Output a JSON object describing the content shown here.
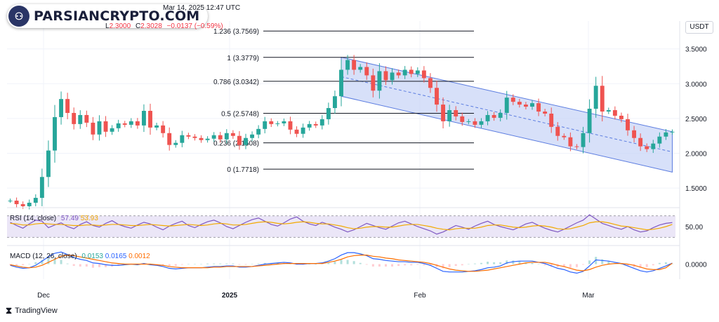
{
  "header": {
    "timestamp": "Mar 14, 2025 12:47 UTC",
    "ohlc": {
      "l_label": "L",
      "l_value": "2.3000",
      "c_label": "C",
      "c_value": "2.3028",
      "change": "−0.0137 (−0.59%)"
    },
    "currency": "USDT"
  },
  "watermark": {
    "text": "PARSIANCRYPTO.COM"
  },
  "footer": {
    "brand": "TradingView"
  },
  "colors": {
    "up": "#26a69a",
    "down": "#ef5350",
    "channel_fill": "#c9d6f7",
    "channel_line": "#5b7ce0",
    "fib_line": "#131722",
    "rsi_line": "#7e57c2",
    "rsi_ma": "#f2a900",
    "rsi_band": "#ebe6f7",
    "macd_line": "#2962ff",
    "signal_line": "#ff6d00"
  },
  "chart_data": [
    {
      "type": "line",
      "title": "",
      "xlabel": "",
      "ylabel": "",
      "x_ticks": [
        "Dec",
        "2025",
        "Feb",
        "Mar"
      ],
      "y_ticks": [
        "3.5000",
        "3.0000",
        "2.5000",
        "2.0000",
        "1.5000"
      ],
      "ylim": [
        1.3,
        3.9
      ],
      "grid": true,
      "series": [
        {
          "values": [
            1.32,
            1.27,
            1.24,
            1.29,
            1.36,
            1.66,
            2.04,
            2.52,
            2.78,
            2.58,
            2.42,
            2.55,
            2.44,
            2.27,
            2.46,
            2.31,
            2.36,
            2.43,
            2.41,
            2.46,
            2.4,
            2.61,
            2.37,
            2.4,
            2.29,
            2.12,
            2.15,
            2.26,
            2.24,
            2.22,
            2.19,
            2.21,
            2.26,
            2.2,
            2.29,
            2.25,
            2.12,
            2.22,
            2.27,
            2.35,
            2.46,
            2.42,
            2.43,
            2.46,
            2.34,
            2.28,
            2.37,
            2.42,
            2.4,
            2.49,
            2.65,
            2.82,
            3.2,
            3.34,
            3.2,
            3.24,
            3.12,
            2.9,
            3.18,
            3.05,
            3.16,
            3.12,
            3.2,
            3.14,
            3.19,
            3.08,
            2.94,
            2.7,
            2.46,
            2.62,
            2.53,
            2.45,
            2.46,
            2.41,
            2.46,
            2.55,
            2.51,
            2.58,
            2.8,
            2.74,
            2.7,
            2.67,
            2.72,
            2.6,
            2.57,
            2.38,
            2.25,
            2.23,
            2.1,
            2.09,
            2.29,
            2.64,
            2.97,
            2.6,
            2.62,
            2.54,
            2.49,
            2.33,
            2.22,
            2.1,
            2.06,
            2.14,
            2.24,
            2.3,
            2.31
          ]
        }
      ],
      "fibonacci_levels": [
        {
          "label": "1.236 (3.7569)",
          "value": 3.7569
        },
        {
          "label": "1 (3.3779)",
          "value": 3.3779
        },
        {
          "label": "0.786 (3.0342)",
          "value": 3.0342
        },
        {
          "label": "0.5 (2.5748)",
          "value": 2.5748
        },
        {
          "label": "0.236 (2.1508)",
          "value": 2.1508
        },
        {
          "label": "0 (1.7718)",
          "value": 1.7718
        }
      ],
      "channel": {
        "start_index": 52,
        "end_index": 104,
        "upper": [
          3.38,
          2.31
        ],
        "lower": [
          2.82,
          1.73
        ]
      }
    },
    {
      "type": "line",
      "title": "RSI (14, close)",
      "legend": [
        "57.49",
        "53.93"
      ],
      "y_ticks": [
        "50.00"
      ],
      "ylim": [
        20,
        80
      ],
      "band": [
        30,
        70
      ],
      "series": [
        {
          "name": "57.49",
          "values": [
            58,
            52,
            47,
            55,
            62,
            60,
            48,
            53,
            57,
            50,
            46,
            54,
            59,
            52,
            49,
            56,
            61,
            54,
            50,
            47,
            53,
            58,
            55,
            49,
            44,
            51,
            56,
            60,
            52,
            48,
            54,
            59,
            62,
            57,
            50,
            46,
            52,
            58,
            63,
            66,
            60,
            54,
            51,
            57,
            64,
            68,
            60,
            55,
            52,
            58,
            54,
            49,
            45,
            40,
            44,
            50,
            56,
            52,
            48,
            45,
            51,
            57,
            60,
            55,
            50,
            46,
            42,
            36,
            40,
            46,
            52,
            49,
            45,
            51,
            56,
            60,
            54,
            50,
            47,
            44,
            49,
            55,
            58,
            52,
            47,
            43,
            40,
            45,
            51,
            57,
            62,
            72,
            64,
            56,
            52,
            48,
            45,
            50,
            44,
            40,
            42,
            48,
            53,
            56,
            57.49
          ]
        },
        {
          "name": "53.93",
          "values": [
            56,
            55,
            53,
            53,
            55,
            56,
            55,
            54,
            54,
            53,
            52,
            52,
            53,
            53,
            52,
            53,
            54,
            54,
            53,
            52,
            52,
            53,
            54,
            53,
            52,
            51,
            52,
            53,
            54,
            53,
            52,
            53,
            55,
            56,
            55,
            53,
            53,
            54,
            56,
            58,
            59,
            58,
            56,
            55,
            56,
            58,
            59,
            58,
            56,
            55,
            55,
            53,
            51,
            48,
            46,
            47,
            49,
            50,
            50,
            49,
            49,
            51,
            53,
            54,
            54,
            52,
            50,
            47,
            45,
            44,
            46,
            47,
            47,
            47,
            49,
            52,
            53,
            53,
            51,
            49,
            48,
            49,
            51,
            52,
            51,
            49,
            46,
            45,
            46,
            49,
            52,
            57,
            59,
            59,
            57,
            54,
            51,
            50,
            48,
            46,
            44,
            45,
            47,
            50,
            53.93
          ]
        }
      ]
    },
    {
      "type": "bar",
      "title": "MACD (12, 26, close)",
      "legend": [
        "0.0153",
        "0.0165",
        "0.0012"
      ],
      "y_ticks": [
        "0.0000"
      ],
      "ylim": [
        -0.25,
        0.25
      ],
      "series": [
        {
          "name": "0.0165",
          "values": [
            -0.02,
            -0.05,
            -0.07,
            -0.06,
            -0.02,
            0.05,
            0.12,
            0.18,
            0.2,
            0.16,
            0.11,
            0.08,
            0.06,
            0.02,
            0.01,
            -0.01,
            -0.02,
            -0.02,
            -0.01,
            0.0,
            -0.01,
            0.01,
            -0.01,
            -0.02,
            -0.04,
            -0.07,
            -0.08,
            -0.07,
            -0.06,
            -0.06,
            -0.06,
            -0.05,
            -0.04,
            -0.04,
            -0.03,
            -0.03,
            -0.05,
            -0.05,
            -0.04,
            -0.02,
            0.0,
            0.01,
            0.02,
            0.03,
            0.02,
            0.0,
            0.0,
            0.01,
            0.01,
            0.02,
            0.05,
            0.09,
            0.15,
            0.19,
            0.19,
            0.17,
            0.14,
            0.09,
            0.08,
            0.06,
            0.05,
            0.04,
            0.04,
            0.03,
            0.03,
            0.01,
            -0.02,
            -0.07,
            -0.12,
            -0.13,
            -0.13,
            -0.13,
            -0.12,
            -0.11,
            -0.09,
            -0.06,
            -0.05,
            -0.03,
            0.02,
            0.04,
            0.05,
            0.05,
            0.05,
            0.03,
            0.01,
            -0.03,
            -0.07,
            -0.09,
            -0.13,
            -0.15,
            -0.12,
            -0.03,
            0.07,
            0.06,
            0.05,
            0.03,
            0.01,
            -0.03,
            -0.07,
            -0.11,
            -0.13,
            -0.11,
            -0.07,
            -0.03,
            0.0165
          ]
        },
        {
          "name": "0.0153",
          "values": [
            -0.01,
            -0.03,
            -0.05,
            -0.06,
            -0.05,
            -0.02,
            0.03,
            0.08,
            0.13,
            0.15,
            0.14,
            0.12,
            0.1,
            0.08,
            0.06,
            0.04,
            0.02,
            0.01,
            0.0,
            0.0,
            0.0,
            0.0,
            0.0,
            -0.01,
            -0.02,
            -0.04,
            -0.05,
            -0.06,
            -0.06,
            -0.06,
            -0.06,
            -0.06,
            -0.05,
            -0.05,
            -0.04,
            -0.04,
            -0.04,
            -0.04,
            -0.04,
            -0.03,
            -0.02,
            -0.01,
            0.0,
            0.01,
            0.01,
            0.01,
            0.01,
            0.01,
            0.01,
            0.01,
            0.03,
            0.05,
            0.08,
            0.12,
            0.14,
            0.15,
            0.15,
            0.13,
            0.12,
            0.1,
            0.09,
            0.07,
            0.06,
            0.05,
            0.04,
            0.03,
            0.01,
            -0.02,
            -0.05,
            -0.08,
            -0.1,
            -0.11,
            -0.12,
            -0.12,
            -0.11,
            -0.1,
            -0.08,
            -0.06,
            -0.04,
            -0.02,
            0.0,
            0.02,
            0.03,
            0.03,
            0.03,
            0.01,
            -0.02,
            -0.04,
            -0.07,
            -0.1,
            -0.11,
            -0.09,
            -0.05,
            -0.02,
            0.0,
            0.01,
            0.01,
            0.0,
            -0.02,
            -0.05,
            -0.08,
            -0.09,
            -0.09,
            -0.06,
            0.0153
          ]
        }
      ]
    }
  ]
}
